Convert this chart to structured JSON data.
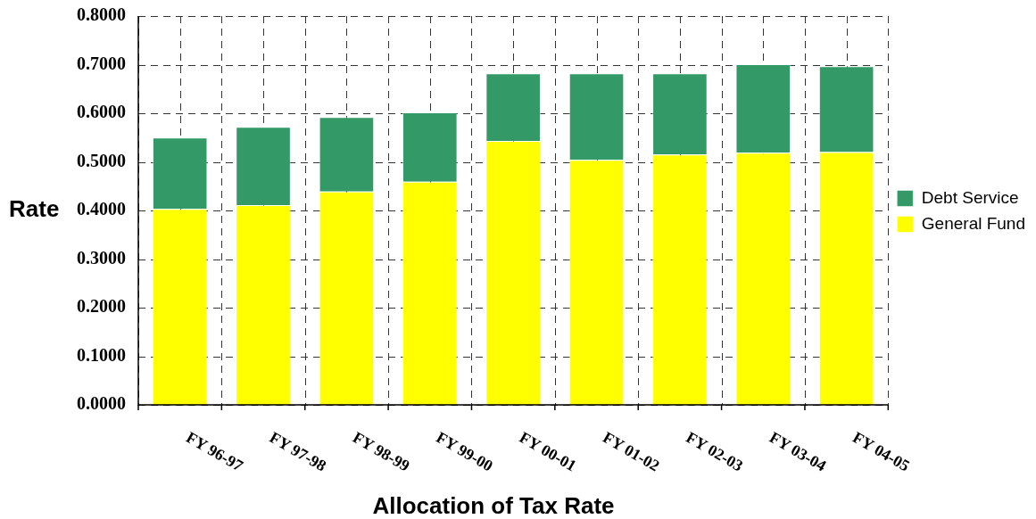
{
  "chart_data": {
    "type": "bar",
    "stacked": true,
    "xlabel": "Allocation of Tax Rate",
    "ylabel": "Rate",
    "categories": [
      "FY 96-97",
      "FY 97-98",
      "FY 98-99",
      "FY 99-00",
      "FY 00-01",
      "FY 01-02",
      "FY 02-03",
      "FY 03-04",
      "FY 04-05"
    ],
    "series": [
      {
        "name": "General Fund",
        "color": "#ffff00",
        "values": [
          0.403,
          0.411,
          0.439,
          0.459,
          0.543,
          0.504,
          0.515,
          0.519,
          0.52
        ]
      },
      {
        "name": "Debt Service",
        "color": "#339966",
        "values": [
          0.147,
          0.161,
          0.153,
          0.143,
          0.139,
          0.178,
          0.167,
          0.182,
          0.177
        ]
      }
    ],
    "ylim": [
      0,
      0.8
    ],
    "yticks": [
      {
        "value": 0,
        "label": "0.0000"
      },
      {
        "value": 0.1,
        "label": "0.1000"
      },
      {
        "value": 0.2,
        "label": "0.2000"
      },
      {
        "value": 0.3,
        "label": "0.3000"
      },
      {
        "value": 0.4,
        "label": "0.4000"
      },
      {
        "value": 0.5,
        "label": "0.5000"
      },
      {
        "value": 0.6,
        "label": "0.6000"
      },
      {
        "value": 0.7,
        "label": "0.7000"
      },
      {
        "value": 0.8,
        "label": "0.8000"
      }
    ],
    "grid": true,
    "legend": "right"
  }
}
